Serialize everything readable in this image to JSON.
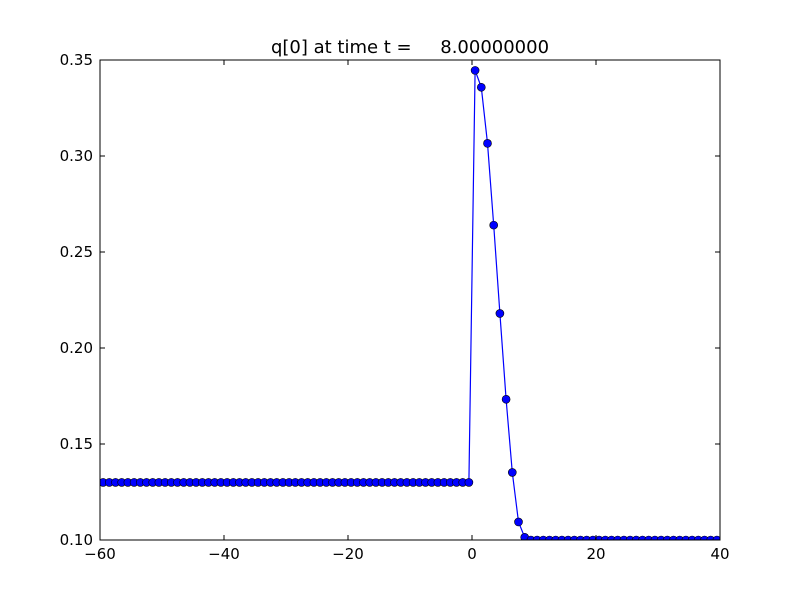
{
  "chart_data": {
    "type": "line",
    "title": "q[0] at time t =     8.00000000",
    "xlabel": "",
    "ylabel": "",
    "xlim": [
      -60,
      40
    ],
    "ylim": [
      0.1,
      0.35
    ],
    "grid": false,
    "line_color": "#0000ff",
    "marker": "circle",
    "xticks": [
      -60,
      -40,
      -20,
      0,
      20,
      40
    ],
    "xtick_labels": [
      "−60",
      "−40",
      "−20",
      "0",
      "20",
      "40"
    ],
    "yticks": [
      0.1,
      0.15,
      0.2,
      0.25,
      0.3,
      0.35
    ],
    "ytick_labels": [
      "0.10",
      "0.15",
      "0.20",
      "0.25",
      "0.30",
      "0.35"
    ],
    "series": [
      {
        "x_start": -59.5,
        "x_step": 1,
        "values": [
          0.13,
          0.13,
          0.13,
          0.13,
          0.13,
          0.13,
          0.13,
          0.13,
          0.13,
          0.13,
          0.13,
          0.13,
          0.13,
          0.13,
          0.13,
          0.13,
          0.13,
          0.13,
          0.13,
          0.13,
          0.13,
          0.13,
          0.13,
          0.13,
          0.13,
          0.13,
          0.13,
          0.13,
          0.13,
          0.13,
          0.13,
          0.13,
          0.13,
          0.13,
          0.13,
          0.13,
          0.13,
          0.13,
          0.13,
          0.13,
          0.13,
          0.13,
          0.13,
          0.13,
          0.13,
          0.13,
          0.13,
          0.13,
          0.13,
          0.13,
          0.13,
          0.13,
          0.13,
          0.13,
          0.13,
          0.13,
          0.13,
          0.13,
          0.13,
          0.13,
          0.3446,
          0.3358,
          0.3066,
          0.264,
          0.218,
          0.1733,
          0.1352,
          0.1094,
          0.1014,
          0.1,
          0.1,
          0.1,
          0.1,
          0.1,
          0.1,
          0.1,
          0.1,
          0.1,
          0.1,
          0.1,
          0.1,
          0.1,
          0.1,
          0.1,
          0.1,
          0.1,
          0.1,
          0.1,
          0.1,
          0.1,
          0.1,
          0.1,
          0.1,
          0.1,
          0.1,
          0.1,
          0.1,
          0.1,
          0.1,
          0.1
        ]
      }
    ]
  }
}
